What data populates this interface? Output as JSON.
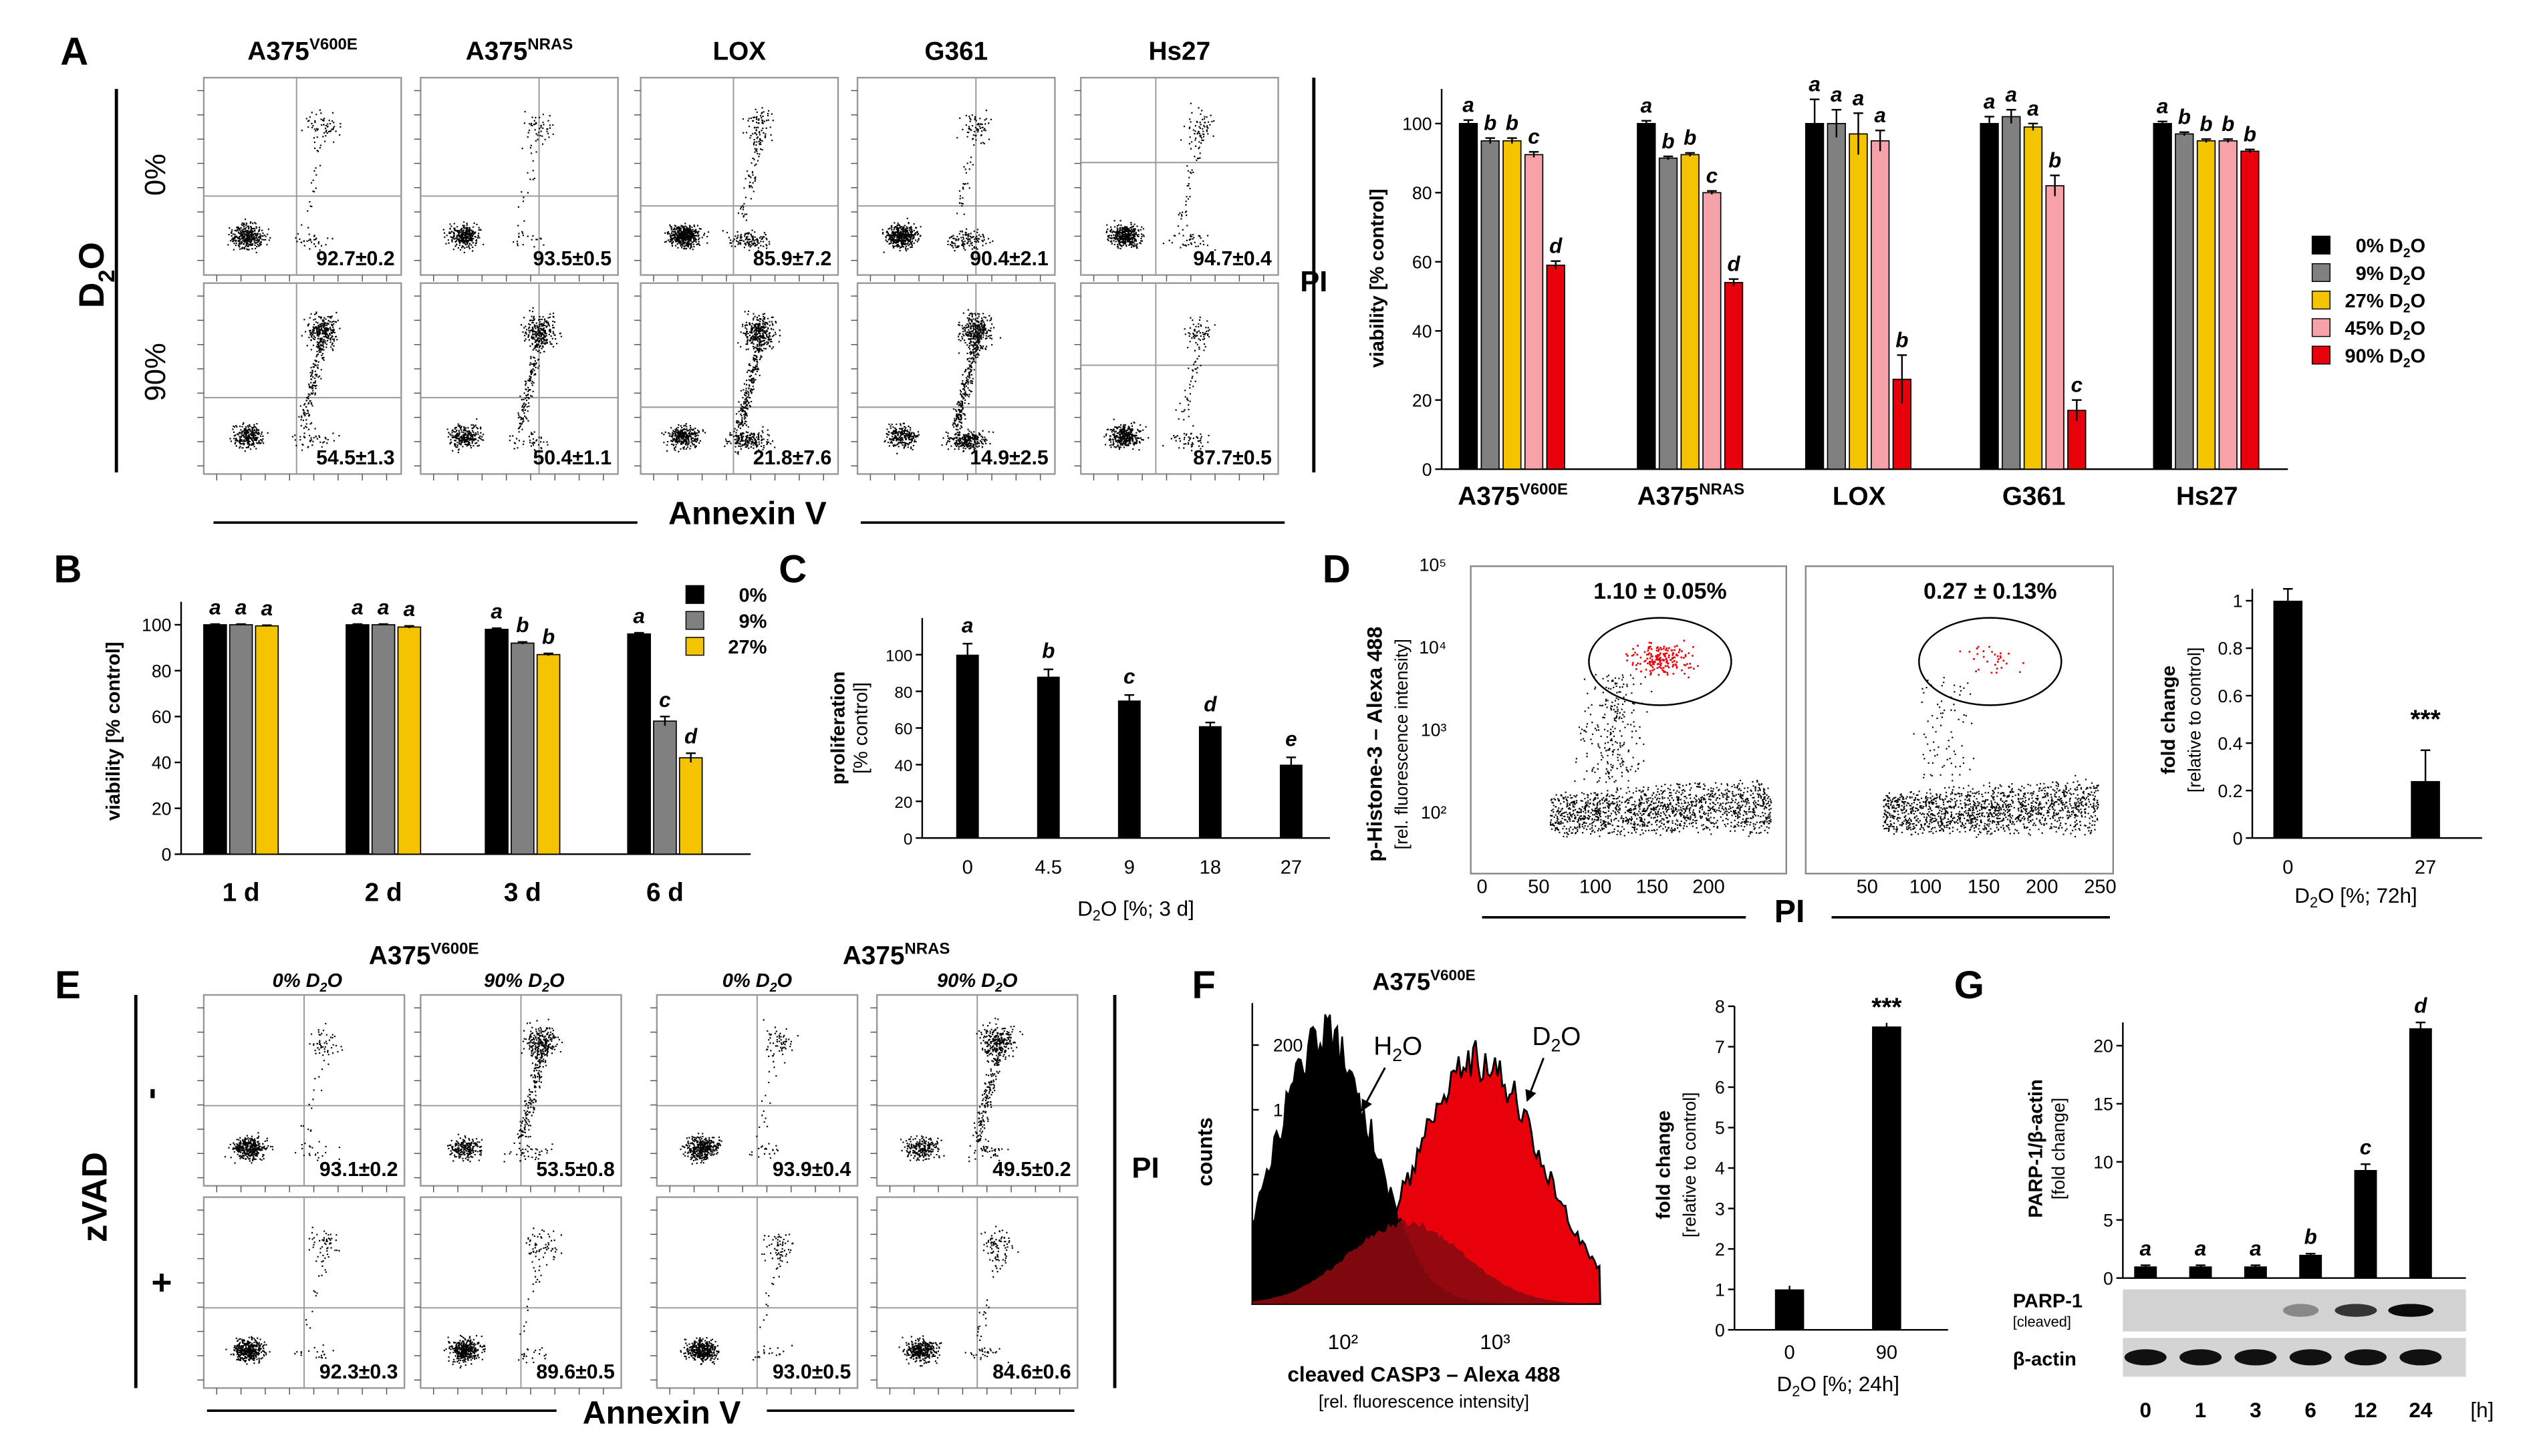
{
  "colors": {
    "c0": "#000000",
    "c9": "#808080",
    "c27": "#f5c400",
    "c45": "#f7a1a9",
    "c90": "#e8000b"
  },
  "labels": {
    "A": "A",
    "B": "B",
    "C": "C",
    "D": "D",
    "E": "E",
    "F": "F",
    "G": "G",
    "fa_cols": [
      "A375",
      "A375",
      "LOX",
      "G361",
      "Hs27"
    ],
    "fa_sups": [
      "V600E",
      "NRAS",
      "",
      "",
      ""
    ],
    "d2o": "D",
    "d2o_sub": "2",
    "d2o_o": "O",
    "zero": "0%",
    "ninety": "90%",
    "pi": "PI",
    "annexin": "Annexin V",
    "fe_cond": [
      "0% D",
      "2",
      "O",
      "90% D",
      "2",
      "O"
    ],
    "zvad": "zVAD",
    "minus": "-",
    "plus": "+",
    "d_y1": "p-Histone-3 – Alexa 488",
    "d_y2": "[rel. fluorescence intensity]",
    "f_title": "A375",
    "f_sup": "V600E",
    "f_h2o": "H",
    "f_d2o": "D",
    "f_x1": "cleaved CASP3 – Alexa 488",
    "f_x2": "[rel. fluorescence intensity]",
    "f_counts": "counts",
    "g_blot1": "PARP-1",
    "g_blot1b": "[cleaved]",
    "g_blot2": "β-actin",
    "g_unit": "[h]"
  },
  "flow_a": {
    "top": [
      "92.7±0.2",
      "93.5±0.5",
      "85.9±7.2",
      "90.4±2.1",
      "94.7±0.4"
    ],
    "bottom": [
      "54.5±1.3",
      "50.4±1.1",
      "21.8±7.6",
      "14.9±2.5",
      "87.7±0.5"
    ]
  },
  "flow_e": {
    "top": [
      "93.1±0.2",
      "53.5±0.8",
      "93.9±0.4",
      "49.5±0.2"
    ],
    "bottom": [
      "92.3±0.3",
      "89.6±0.5",
      "93.0±0.5",
      "84.6±0.6"
    ]
  },
  "chart_data": [
    {
      "id": "A-bar",
      "type": "bar",
      "ylabel": "viability [% control]",
      "ylim": [
        0,
        110
      ],
      "yticks": [
        0,
        20,
        40,
        60,
        80,
        100
      ],
      "legend": [
        "0% D₂O",
        "9% D₂O",
        "27% D₂O",
        "45% D₂O",
        "90% D₂O"
      ],
      "groups": [
        {
          "name": "A375",
          "sup": "V600E",
          "values": [
            100,
            95,
            95,
            91,
            59
          ],
          "err": [
            1,
            0.8,
            0.8,
            0.8,
            1.2
          ],
          "letters": [
            "a",
            "b",
            "b",
            "c",
            "d"
          ]
        },
        {
          "name": "A375",
          "sup": "NRAS",
          "values": [
            100,
            90,
            91,
            80,
            54
          ],
          "err": [
            0.8,
            0.5,
            0.5,
            0.5,
            1
          ],
          "letters": [
            "a",
            "b",
            "b",
            "c",
            "d"
          ]
        },
        {
          "name": "LOX",
          "sup": "",
          "values": [
            100,
            100,
            97,
            95,
            26
          ],
          "err": [
            7,
            4,
            6,
            3,
            7
          ],
          "letters": [
            "a",
            "a",
            "a",
            "a",
            "b"
          ]
        },
        {
          "name": "G361",
          "sup": "",
          "values": [
            100,
            102,
            99,
            82,
            17
          ],
          "err": [
            2,
            2,
            1,
            3,
            3
          ],
          "letters": [
            "a",
            "a",
            "a",
            "b",
            "c"
          ]
        },
        {
          "name": "Hs27",
          "sup": "",
          "values": [
            100,
            97,
            95,
            95,
            92
          ],
          "err": [
            0.6,
            0.5,
            0.5,
            0.5,
            0.5
          ],
          "letters": [
            "a",
            "b",
            "b",
            "b",
            "b"
          ]
        }
      ]
    },
    {
      "id": "B-bar",
      "type": "bar",
      "ylabel": "viability [% control]",
      "ylim": [
        0,
        110
      ],
      "yticks": [
        0,
        20,
        40,
        60,
        80,
        100
      ],
      "legend": [
        "0%",
        "9%",
        "27%"
      ],
      "groups": [
        {
          "name": "1 d",
          "values": [
            100,
            100,
            99.5
          ],
          "err": [
            0.3,
            0.3,
            0.3
          ],
          "letters": [
            "a",
            "a",
            "a"
          ]
        },
        {
          "name": "2 d",
          "values": [
            100,
            100,
            99
          ],
          "err": [
            0.3,
            0.3,
            0.5
          ],
          "letters": [
            "a",
            "a",
            "a"
          ]
        },
        {
          "name": "3 d",
          "values": [
            98,
            92,
            87
          ],
          "err": [
            0.5,
            0.5,
            0.5
          ],
          "letters": [
            "a",
            "b",
            "b"
          ]
        },
        {
          "name": "6 d",
          "values": [
            96,
            58,
            42
          ],
          "err": [
            0.5,
            2,
            2
          ],
          "letters": [
            "a",
            "c",
            "d"
          ]
        }
      ]
    },
    {
      "id": "C-bar",
      "type": "bar",
      "ylabel": [
        "proliferation",
        "[% control]"
      ],
      "xlabel": "D₂O  [%; 3 d]",
      "ylim": [
        0,
        120
      ],
      "yticks": [
        0,
        20,
        40,
        60,
        80,
        100
      ],
      "categories": [
        "0",
        "4.5",
        "9",
        "18",
        "27"
      ],
      "values": [
        100,
        88,
        75,
        61,
        40
      ],
      "err": [
        6,
        4,
        3,
        2,
        4
      ],
      "letters": [
        "a",
        "b",
        "c",
        "d",
        "e"
      ]
    },
    {
      "id": "D-scatter",
      "type": "scatter",
      "xlabel": "PI",
      "xticks": [
        0,
        50,
        100,
        150,
        200
      ],
      "xticks2": [
        50,
        100,
        150,
        200,
        250
      ],
      "yticks": [
        "10²",
        "10³",
        "10⁴",
        "10⁵"
      ],
      "gate_labels": [
        "1.10 ± 0.05%",
        "0.27 ± 0.13%"
      ]
    },
    {
      "id": "D-bar",
      "type": "bar",
      "ylabel": [
        "fold change",
        "[relative to control]"
      ],
      "xlabel": "D₂O  [%; 72h]",
      "ylim": [
        0,
        1.05
      ],
      "yticks": [
        0,
        0.2,
        0.4,
        0.6,
        0.8,
        1
      ],
      "categories": [
        "0",
        "27"
      ],
      "values": [
        1,
        0.24
      ],
      "err": [
        0.05,
        0.13
      ],
      "sig": "***"
    },
    {
      "id": "F-hist",
      "type": "area",
      "series": [
        "H₂O",
        "D₂O"
      ],
      "xticks": [
        "10²",
        "10³"
      ]
    },
    {
      "id": "F-bar",
      "type": "bar",
      "ylabel": [
        "fold change",
        "[relative to control]"
      ],
      "xlabel": "D₂O  [%; 24h]",
      "ylim": [
        0,
        8
      ],
      "yticks": [
        0,
        1,
        2,
        3,
        4,
        5,
        6,
        7,
        8
      ],
      "categories": [
        "0",
        "90"
      ],
      "values": [
        1,
        7.5
      ],
      "err": [
        0.05,
        0.05
      ],
      "sig": "***"
    },
    {
      "id": "G-bar",
      "type": "bar",
      "ylabel": [
        "PARP-1/β-actin",
        "[fold change]"
      ],
      "ylim": [
        0,
        22
      ],
      "yticks": [
        0,
        5,
        10,
        15,
        20
      ],
      "categories": [
        "0",
        "1",
        "3",
        "6",
        "12",
        "24"
      ],
      "values": [
        1,
        1,
        1,
        2,
        9.3,
        21.5
      ],
      "err": [
        0.1,
        0.1,
        0.1,
        0.1,
        0.5,
        0.5
      ],
      "letters": [
        "a",
        "a",
        "a",
        "b",
        "c",
        "d"
      ]
    }
  ]
}
